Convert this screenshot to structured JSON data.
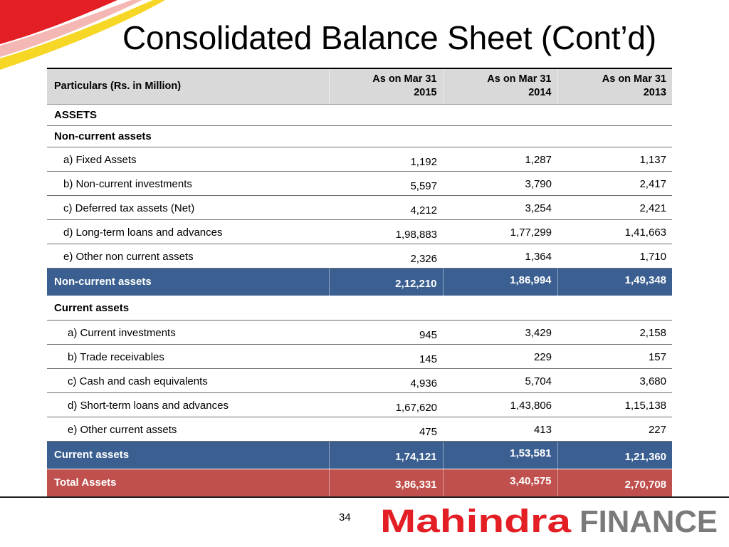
{
  "title": "Consolidated Balance Sheet (Cont’d)",
  "colors": {
    "header_bg": "#d9d9d9",
    "subtotal_bg": "#3a5f90",
    "total_bg": "#c0504d",
    "brand_red": "#e31e24",
    "brand_gray": "#7a7a7a"
  },
  "table": {
    "headers": {
      "particulars": "Particulars (Rs. in Million)",
      "col2015_line1": "As on Mar 31",
      "col2015_line2": "2015",
      "col2014_line1": "As on Mar 31",
      "col2014_line2": "2014",
      "col2013_line1": "As on Mar 31",
      "col2013_line2": "2013"
    },
    "sections": {
      "assets": "ASSETS",
      "noncurrent": "Non-current assets",
      "current": "Current assets"
    },
    "noncurrent_items": [
      {
        "label": "a) Fixed Assets",
        "v2015": "1,192",
        "v2014": "1,287",
        "v2013": "1,137"
      },
      {
        "label": "b) Non-current investments",
        "v2015": "5,597",
        "v2014": "3,790",
        "v2013": "2,417"
      },
      {
        "label": "c) Deferred tax assets (Net)",
        "v2015": "4,212",
        "v2014": "3,254",
        "v2013": "2,421"
      },
      {
        "label": "d) Long-term loans and advances",
        "v2015": "1,98,883",
        "v2014": "1,77,299",
        "v2013": "1,41,663"
      },
      {
        "label": "e) Other non current assets",
        "v2015": "2,326",
        "v2014": "1,364",
        "v2013": "1,710"
      }
    ],
    "noncurrent_total": {
      "label": "Non-current assets",
      "v2015": "2,12,210",
      "v2014": "1,86,994",
      "v2013": "1,49,348"
    },
    "current_items": [
      {
        "label": "a) Current investments",
        "v2015": "945",
        "v2014": "3,429",
        "v2013": "2,158"
      },
      {
        "label": "b) Trade receivables",
        "v2015": "145",
        "v2014": "229",
        "v2013": "157"
      },
      {
        "label": "c) Cash and cash equivalents",
        "v2015": "4,936",
        "v2014": "5,704",
        "v2013": "3,680"
      },
      {
        "label": "d) Short-term loans and advances",
        "v2015": "1,67,620",
        "v2014": "1,43,806",
        "v2013": "1,15,138"
      },
      {
        "label": "e) Other current assets",
        "v2015": "475",
        "v2014": "413",
        "v2013": "227"
      }
    ],
    "current_total": {
      "label": "Current assets",
      "v2015": "1,74,121",
      "v2014": "1,53,581",
      "v2013": "1,21,360"
    },
    "grand_total": {
      "label": "Total Assets",
      "v2015": "3,86,331",
      "v2014": "3,40,575",
      "v2013": "2,70,708"
    }
  },
  "footer": {
    "page_number": "34",
    "logo_word1": "Mahindra",
    "logo_word2": "FINANCE"
  }
}
